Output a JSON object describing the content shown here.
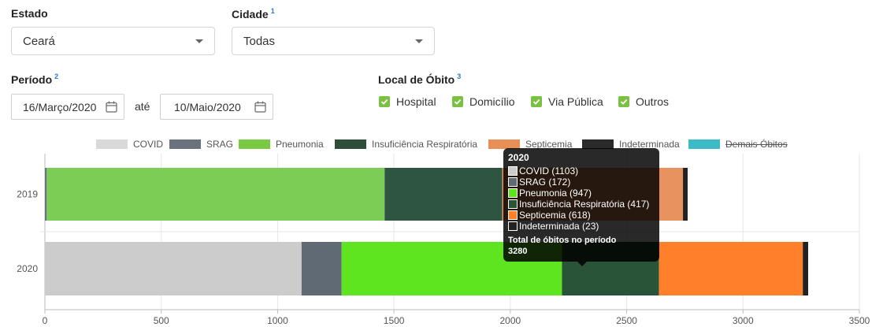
{
  "filters": {
    "estado": {
      "label": "Estado",
      "value": "Ceará"
    },
    "cidade": {
      "label": "Cidade",
      "sup": "1",
      "value": "Todas"
    },
    "periodo": {
      "label": "Período",
      "sup": "2",
      "start": "16/Março/2020",
      "separator": "até",
      "end": "10/Maio/2020"
    },
    "local": {
      "label": "Local de Óbito",
      "sup": "3",
      "options": [
        "Hospital",
        "Domicílio",
        "Via Pública",
        "Outros"
      ]
    }
  },
  "legend": [
    {
      "name": "COVID",
      "color": "#d9d9d9",
      "hidden": false
    },
    {
      "name": "SRAG",
      "color": "#6a737d",
      "hidden": false
    },
    {
      "name": "Pneumonia",
      "color": "#7ac943",
      "hidden": false
    },
    {
      "name": "Insuficiência Respiratória",
      "color": "#2e4e3a",
      "hidden": false
    },
    {
      "name": "Septicemia",
      "color": "#e88f55",
      "hidden": false
    },
    {
      "name": "Indeterminada",
      "color": "#2a2a2a",
      "hidden": false
    },
    {
      "name": "Demais Óbitos",
      "color": "#3cbac8",
      "hidden": true
    }
  ],
  "chart_data": {
    "type": "bar",
    "orientation": "horizontal",
    "stacked": true,
    "categories": [
      "2019",
      "2020"
    ],
    "series": [
      {
        "name": "COVID",
        "values": [
          0,
          1103
        ],
        "colors": [
          "#cfcfcf",
          "#cccccc"
        ]
      },
      {
        "name": "SRAG",
        "values": [
          8,
          172
        ],
        "colors": [
          "#6a737d",
          "#5f6a75"
        ]
      },
      {
        "name": "Pneumonia",
        "values": [
          1452,
          947
        ],
        "colors": [
          "#7ccd55",
          "#5ee51f"
        ]
      },
      {
        "name": "Insuficiência Respiratória",
        "values": [
          505,
          417
        ],
        "colors": [
          "#2e5442",
          "#2a5438"
        ]
      },
      {
        "name": "Septicemia",
        "values": [
          777,
          618
        ],
        "colors": [
          "#e8935f",
          "#ff7f2a"
        ]
      },
      {
        "name": "Indeterminada",
        "values": [
          20,
          23
        ],
        "colors": [
          "#222222",
          "#222222"
        ]
      }
    ],
    "xlim": [
      0,
      3500
    ],
    "xticks": [
      0,
      500,
      1000,
      1500,
      2000,
      2500,
      3000,
      3500
    ],
    "grid": true,
    "legend_position": "top"
  },
  "tooltip": {
    "title": "2020",
    "rows": [
      {
        "text": "COVID (1103)",
        "color": "#cccccc"
      },
      {
        "text": "SRAG (172)",
        "color": "#5f6a75"
      },
      {
        "text": "Pneumonia (947)",
        "color": "#5ee51f"
      },
      {
        "text": "Insuficiência Respiratória (417)",
        "color": "#2a5438"
      },
      {
        "text": "Septicemia (618)",
        "color": "#ff7f2a"
      },
      {
        "text": "Indeterminada (23)",
        "color": "#222222"
      }
    ],
    "footer_label": "Total de óbitos no período",
    "footer_value": "3280"
  }
}
